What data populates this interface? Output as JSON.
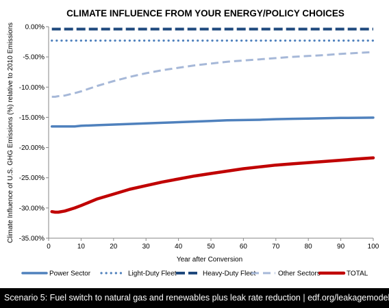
{
  "chart_data": {
    "type": "line",
    "title": "CLIMATE INFLUENCE FROM YOUR ENERGY/POLICY CHOICES",
    "xlabel": "Year after Conversion",
    "ylabel": "Climate Influence of U.S. GHG Emissions (%) relative to 2010 Emissions",
    "xlim": [
      0,
      100
    ],
    "ylim": [
      -35,
      0
    ],
    "x_ticks": [
      0,
      10,
      20,
      30,
      40,
      50,
      60,
      70,
      80,
      90,
      100
    ],
    "y_ticks": [
      0,
      -5,
      -10,
      -15,
      -20,
      -25,
      -30,
      -35
    ],
    "y_tick_labels": [
      "0.00%",
      "-5.00%",
      "-10.00%",
      "-15.00%",
      "-20.00%",
      "-25.00%",
      "-30.00%",
      "-35.00%"
    ],
    "grid": false,
    "legend_position": "bottom",
    "x": [
      1,
      2,
      3,
      5,
      8,
      10,
      15,
      20,
      25,
      30,
      35,
      40,
      45,
      50,
      55,
      60,
      65,
      70,
      75,
      80,
      85,
      90,
      95,
      100
    ],
    "series": [
      {
        "name": "Power Sector",
        "color": "#4F81BD",
        "dash": "solid",
        "values": [
          -16.5,
          -16.5,
          -16.5,
          -16.5,
          -16.5,
          -16.4,
          -16.3,
          -16.2,
          -16.1,
          -16.0,
          -15.9,
          -15.8,
          -15.7,
          -15.6,
          -15.5,
          -15.45,
          -15.4,
          -15.3,
          -15.25,
          -15.2,
          -15.15,
          -15.1,
          -15.08,
          -15.05
        ]
      },
      {
        "name": "Light-Duty Fleet",
        "color": "#4F81BD",
        "dash": "dotted",
        "values": [
          -2.3,
          -2.3,
          -2.3,
          -2.3,
          -2.3,
          -2.3,
          -2.3,
          -2.3,
          -2.3,
          -2.3,
          -2.3,
          -2.3,
          -2.3,
          -2.3,
          -2.3,
          -2.3,
          -2.3,
          -2.3,
          -2.3,
          -2.3,
          -2.3,
          -2.3,
          -2.3,
          -2.3
        ]
      },
      {
        "name": "Heavy-Duty Fleet",
        "color": "#1F497D",
        "dash": "longdash",
        "values": [
          -0.4,
          -0.4,
          -0.4,
          -0.4,
          -0.4,
          -0.4,
          -0.4,
          -0.4,
          -0.4,
          -0.4,
          -0.4,
          -0.4,
          -0.4,
          -0.4,
          -0.4,
          -0.4,
          -0.4,
          -0.4,
          -0.4,
          -0.4,
          -0.4,
          -0.4,
          -0.4,
          -0.4
        ]
      },
      {
        "name": "Other Sectors",
        "color": "#A6B8D8",
        "dash": "dashed",
        "values": [
          -11.6,
          -11.6,
          -11.5,
          -11.4,
          -11.0,
          -10.7,
          -9.8,
          -9.0,
          -8.3,
          -7.7,
          -7.2,
          -6.8,
          -6.4,
          -6.1,
          -5.8,
          -5.6,
          -5.4,
          -5.2,
          -5.0,
          -4.85,
          -4.7,
          -4.5,
          -4.35,
          -4.2
        ]
      },
      {
        "name": "TOTAL",
        "color": "#C00000",
        "dash": "solid",
        "values": [
          -30.6,
          -30.7,
          -30.7,
          -30.5,
          -30.0,
          -29.6,
          -28.5,
          -27.7,
          -26.9,
          -26.3,
          -25.7,
          -25.2,
          -24.7,
          -24.3,
          -23.9,
          -23.5,
          -23.2,
          -22.9,
          -22.7,
          -22.5,
          -22.3,
          -22.1,
          -21.9,
          -21.7
        ]
      }
    ]
  },
  "footer": {
    "text": "Scenario 5: Fuel switch to natural gas and renewables plus leak rate reduction | edf.org/leakagemodel"
  }
}
